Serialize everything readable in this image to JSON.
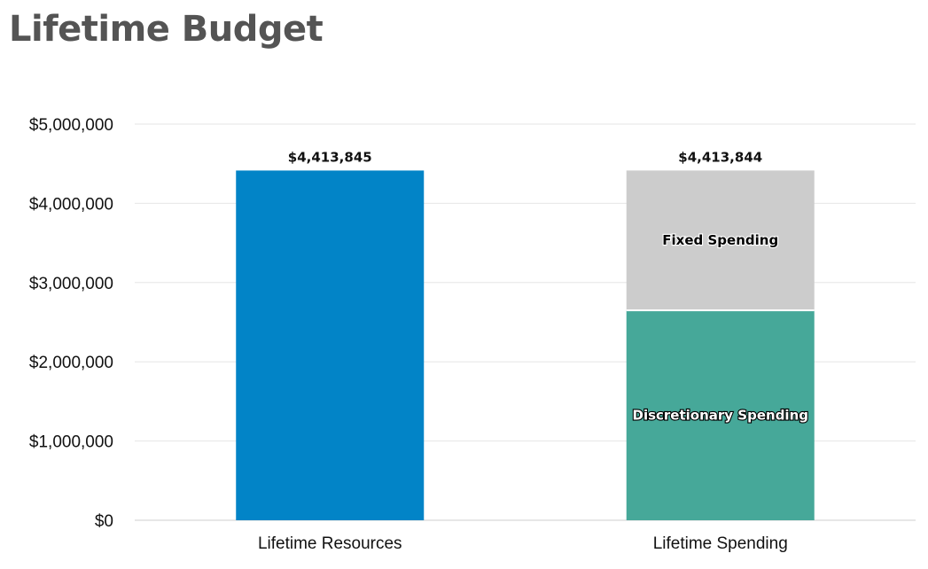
{
  "page": {
    "title": "Lifetime Budget"
  },
  "chart_data": {
    "type": "bar",
    "stacked": true,
    "title": "Lifetime Budget",
    "xlabel": "",
    "ylabel": "",
    "ylim": [
      0,
      5000000
    ],
    "yticks": [
      0,
      1000000,
      2000000,
      3000000,
      4000000,
      5000000
    ],
    "ytick_labels": [
      "$0",
      "$1,000,000",
      "$2,000,000",
      "$3,000,000",
      "$4,000,000",
      "$5,000,000"
    ],
    "grid": true,
    "categories": [
      "Lifetime Resources",
      "Lifetime Spending"
    ],
    "totals": [
      4413845,
      4413844
    ],
    "total_labels": [
      "$4,413,845",
      "$4,413,844"
    ],
    "bars": [
      {
        "category": "Lifetime Resources",
        "segments": [
          {
            "label": "",
            "value": 4413845,
            "color": "#0284c7"
          }
        ]
      },
      {
        "category": "Lifetime Spending",
        "segments": [
          {
            "label": "Discretionary Spending",
            "value": 2650000,
            "color": "#46a899"
          },
          {
            "label": "Fixed Spending",
            "value": 1763844,
            "color": "#cccccc"
          }
        ]
      }
    ]
  }
}
